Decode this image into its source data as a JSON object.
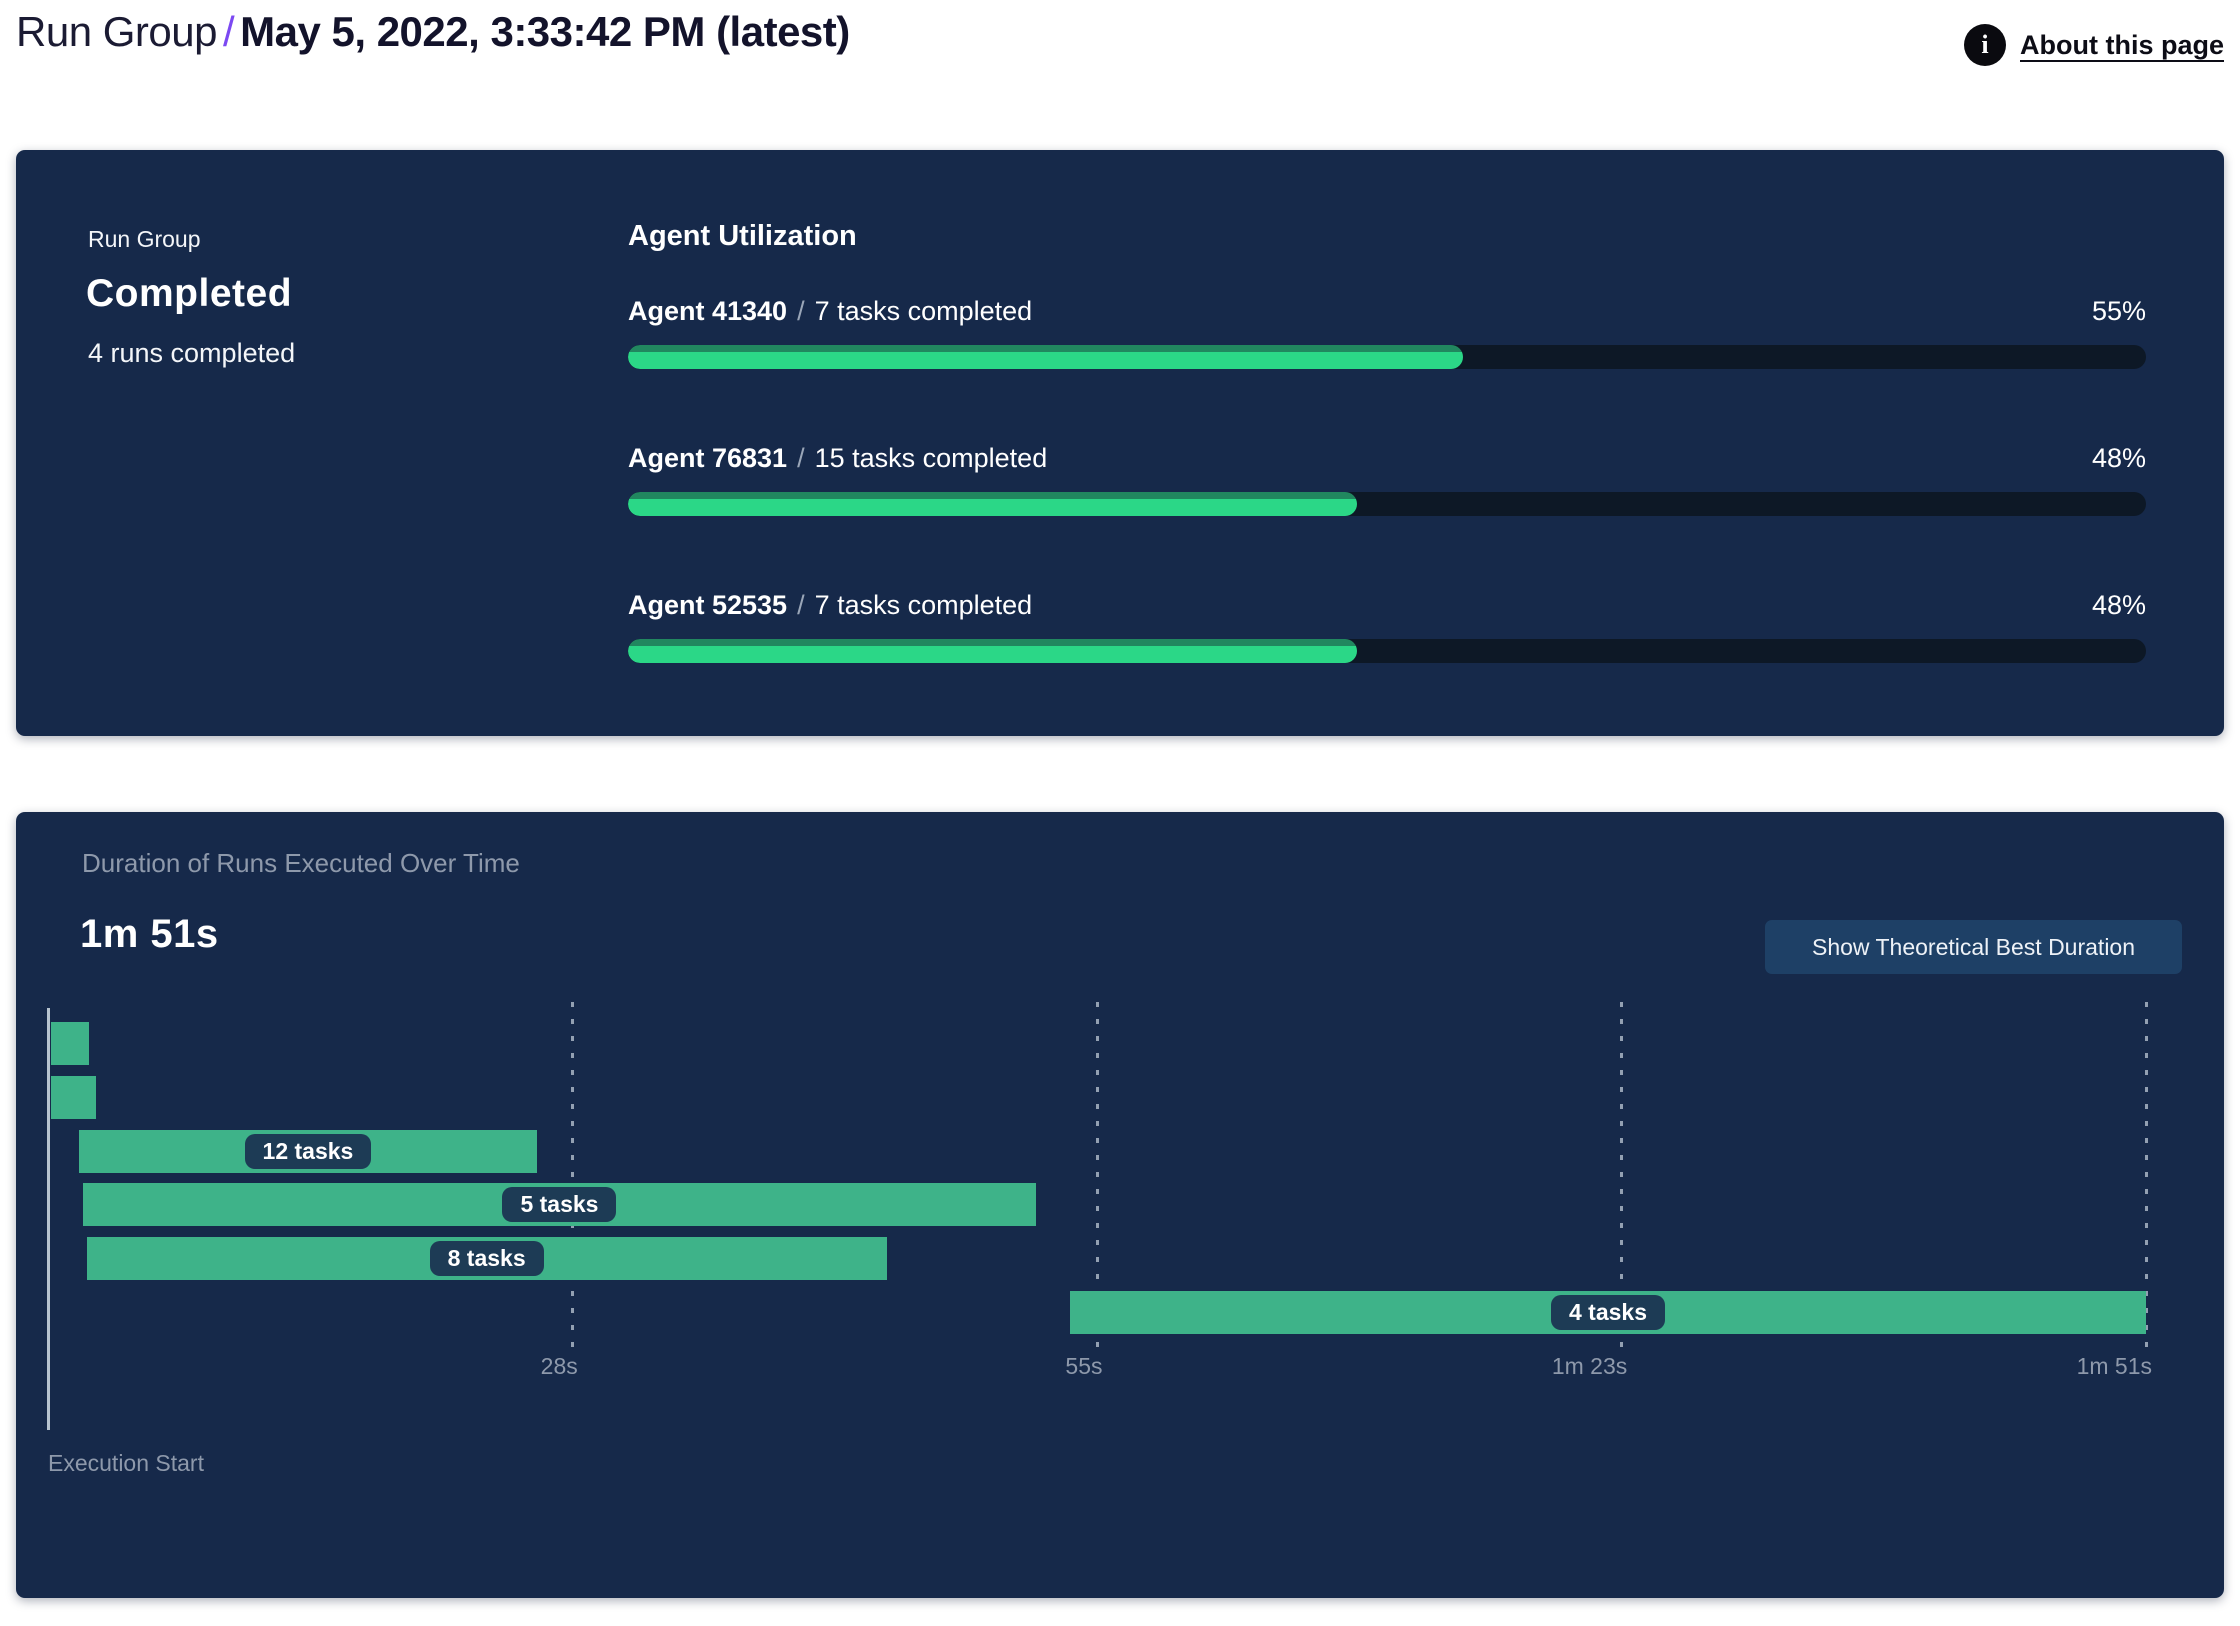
{
  "header": {
    "breadcrumb_root": "Run Group",
    "separator": "/",
    "title": "May 5, 2022, 3:33:42 PM (latest)",
    "about_link_label": "About this page",
    "info_icon": "info-icon"
  },
  "summary_card": {
    "label": "Run Group",
    "status": "Completed",
    "runs_completed": "4 runs completed",
    "agent_utilization": {
      "title": "Agent Utilization",
      "separator": "/",
      "agents": [
        {
          "name": "Agent 41340",
          "tasks": "7 tasks completed",
          "percent": 55
        },
        {
          "name": "Agent 76831",
          "tasks": "15 tasks completed",
          "percent": 48
        },
        {
          "name": "Agent 52535",
          "tasks": "7 tasks completed",
          "percent": 48
        }
      ]
    }
  },
  "duration_card": {
    "subtitle": "Duration of Runs Executed Over Time",
    "total_duration": "1m 51s",
    "button_label": "Show Theoretical Best Duration",
    "execution_start_label": "Execution Start"
  },
  "chart_data": {
    "type": "gantt",
    "title": "Duration of Runs Executed Over Time",
    "total_duration_label": "1m 51s",
    "xlabel": "Execution Start",
    "grid": "dashed-vertical",
    "legend": "none",
    "time_axis": {
      "min_s": 0,
      "max_s": 111,
      "ticks": [
        {
          "s": 27.75,
          "label": "28s"
        },
        {
          "s": 55.5,
          "label": "55s"
        },
        {
          "s": 83.25,
          "label": "1m 23s"
        },
        {
          "s": 111,
          "label": "1m 51s"
        }
      ]
    },
    "runs": [
      {
        "row": 1,
        "start_s": 0.2,
        "end_s": 2.2,
        "label": ""
      },
      {
        "row": 2,
        "start_s": 0.2,
        "end_s": 2.6,
        "label": ""
      },
      {
        "row": 3,
        "start_s": 1.7,
        "end_s": 25.9,
        "label": "12 tasks"
      },
      {
        "row": 4,
        "start_s": 1.9,
        "end_s": 52.3,
        "label": "5 tasks"
      },
      {
        "row": 5,
        "start_s": 2.1,
        "end_s": 44.4,
        "label": "8 tasks"
      },
      {
        "row": 6,
        "start_s": 54.1,
        "end_s": 111.0,
        "label": "4 tasks"
      }
    ]
  },
  "colors": {
    "card_bg": "#16294a",
    "track_bg": "#0d1826",
    "progress_green": "#2bd787",
    "progress_green_dark": "#21875f",
    "gantt_green": "#3eb389",
    "pill_bg": "#1d3b55",
    "muted_text": "#8e99ab",
    "axis_line": "#b7c3cf",
    "gridline": "#93a0b2",
    "button_bg": "#1e4066",
    "accent_purple": "#7c49f2",
    "ink": "#16162e"
  }
}
